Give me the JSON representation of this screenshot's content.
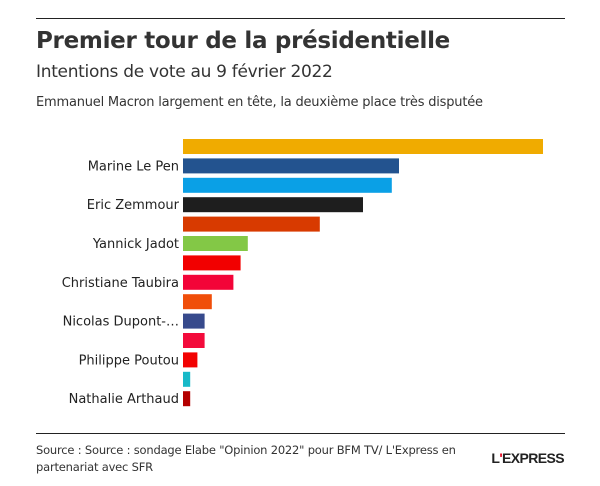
{
  "header": {
    "title": "Premier tour de la présidentielle",
    "subtitle": "Intentions de vote au 9 février 2022",
    "description": "Emmanuel Macron largement en tête, la deuxième place très disputée"
  },
  "chart_data": {
    "type": "bar",
    "orientation": "horizontal",
    "title": "Premier tour de la présidentielle",
    "subtitle": "Intentions de vote au 9 février 2022",
    "xlabel": "",
    "ylabel": "",
    "xlim": [
      0,
      25
    ],
    "grid": false,
    "legend": "none",
    "unit": "%",
    "categories": [
      "",
      "Marine Le Pen",
      "",
      "Eric Zemmour",
      "",
      "Yannick Jadot",
      "",
      "Christiane Taubira",
      "",
      "Nicolas Dupont-…",
      "",
      "Philippe Poutou",
      "",
      "Nathalie Arthaud"
    ],
    "values": [
      25,
      15,
      14.5,
      12.5,
      9.5,
      4.5,
      4,
      3.5,
      2,
      1.5,
      1.5,
      1,
      0.5,
      0.5
    ],
    "colors": [
      "#F0AB00",
      "#23538F",
      "#0AA0E6",
      "#1E1E1E",
      "#D83A00",
      "#83C846",
      "#F20000",
      "#F30438",
      "#F04E0A",
      "#374A8C",
      "#F30B3B",
      "#F20202",
      "#17B9C8",
      "#B40000"
    ]
  },
  "footer": {
    "source": "Source : Source : sondage Elabe \"Opinion 2022\" pour BFM TV/ L'Express en partenariat avec SFR",
    "logo_prefix": "L",
    "logo_apostrophe": "'",
    "logo_suffix": "EXPRESS"
  }
}
